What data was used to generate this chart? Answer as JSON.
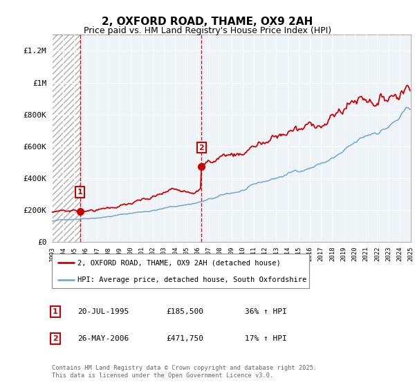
{
  "title": "2, OXFORD ROAD, THAME, OX9 2AH",
  "subtitle": "Price paid vs. HM Land Registry's House Price Index (HPI)",
  "ylim": [
    0,
    1300000
  ],
  "yticks": [
    0,
    200000,
    400000,
    600000,
    800000,
    1000000,
    1200000
  ],
  "ytick_labels": [
    "£0",
    "£200K",
    "£400K",
    "£600K",
    "£800K",
    "£1M",
    "£1.2M"
  ],
  "legend_house": "2, OXFORD ROAD, THAME, OX9 2AH (detached house)",
  "legend_hpi": "HPI: Average price, detached house, South Oxfordshire",
  "table_rows": [
    {
      "label": "1",
      "date": "20-JUL-1995",
      "price": "£185,500",
      "hpi": "36% ↑ HPI"
    },
    {
      "label": "2",
      "date": "26-MAY-2006",
      "price": "£471,750",
      "hpi": "17% ↑ HPI"
    }
  ],
  "footnote": "Contains HM Land Registry data © Crown copyright and database right 2025.\nThis data is licensed under the Open Government Licence v3.0.",
  "house_color": "#cc0000",
  "hpi_color": "#7aaad0",
  "grid_color": "#cccccc",
  "x_start_year": 1993,
  "x_end_year": 2025,
  "sale1_year": 1995,
  "sale1_month": 7,
  "sale1_price": 185500,
  "sale2_year": 2006,
  "sale2_month": 5,
  "sale2_price": 471750
}
